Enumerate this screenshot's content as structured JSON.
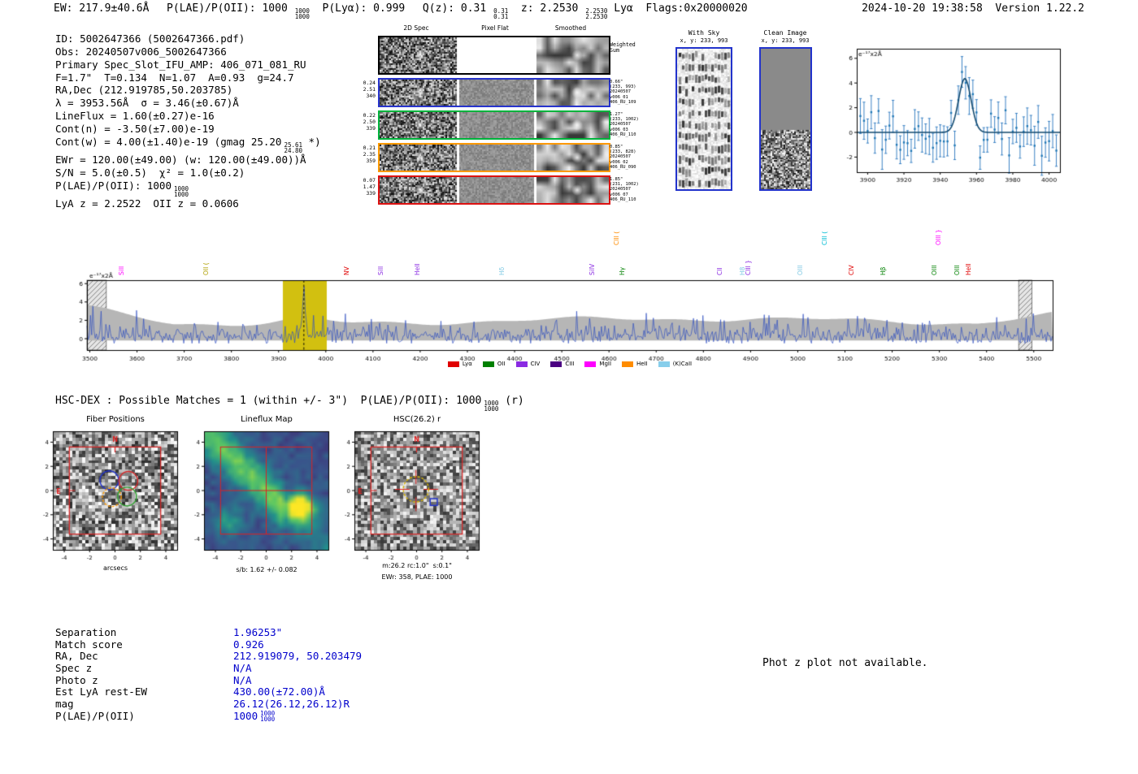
{
  "colors": {
    "value_blue": "#0000cc",
    "box_blue": "#2233cc",
    "highlight_yellow": "#d2c010",
    "envelope_gray": "#b6b6b6",
    "spectrum_blue": "#2f4fc0",
    "marker_red": "#dd2222"
  },
  "topbar": {
    "parts": [
      {
        "text": "EW: 217.9±40.6Å ",
        "frac": null
      },
      {
        "text": " P(LAE)/P(OII): 1000",
        "frac": [
          "1000",
          "1000"
        ]
      },
      {
        "text": "  P(Lyα): 0.999 ",
        "frac": null
      },
      {
        "text": " Q(z): 0.31",
        "frac": [
          "0.31",
          "0.31"
        ]
      },
      {
        "text": "  z: 2.2530",
        "frac": [
          "2.2530",
          "2.2530"
        ]
      },
      {
        "text": " Lyα  Flags:0x20000020",
        "frac": null
      }
    ],
    "datetime": "2024-10-20 19:38:58  Version 1.22.2"
  },
  "info_lines": [
    {
      "text": "ID: 5002647366 (5002647366.pdf)",
      "frac": null,
      "tail": ""
    },
    {
      "text": "Obs: 20240507v006_5002647366",
      "frac": null,
      "tail": ""
    },
    {
      "text": "Primary Spec_Slot_IFU_AMP: 406_071_081_RU",
      "frac": null,
      "tail": ""
    },
    {
      "text": "F=1.7\"  T=0.134  N=1.07  A=0.93  g=24.7",
      "frac": null,
      "tail": ""
    },
    {
      "text": "RA,Dec (212.919785,50.203785)",
      "frac": null,
      "tail": ""
    },
    {
      "text": "λ = 3953.56Å  σ = 3.46(±0.67)Å",
      "frac": null,
      "tail": ""
    },
    {
      "text": "LineFlux = 1.60(±0.27)e-16",
      "frac": null,
      "tail": ""
    },
    {
      "text": "Cont(n) = -3.50(±7.00)e-19",
      "frac": null,
      "tail": ""
    },
    {
      "text": "Cont(w) = 4.00(±1.40)e-19 (gmag 25.20",
      "frac": [
        "25.61",
        "24.80"
      ],
      "tail": " *)"
    },
    {
      "text": "EWr = 120.00(±49.00) (w: 120.00(±49.00))Å",
      "frac": null,
      "tail": ""
    },
    {
      "text": "S/N = 5.0(±0.5)  χ² = 1.0(±0.2)",
      "frac": null,
      "tail": ""
    },
    {
      "text": "P(LAE)/P(OII): 1000",
      "frac": [
        "1000",
        "1000"
      ],
      "tail": ""
    },
    {
      "text": "LyA z = 2.2522  OII z = 0.0606",
      "frac": null,
      "tail": ""
    }
  ],
  "spec2d": {
    "col_headers": [
      "2D Spec",
      "Pixel Flat",
      "Smoothed"
    ],
    "rows": [
      {
        "border": "#000000",
        "weighted": true,
        "left": [],
        "right": [
          "Weighted",
          "Sum"
        ]
      },
      {
        "border": "#2733cc",
        "weighted": false,
        "left": [
          "0.24",
          "2.51",
          "340"
        ],
        "right": [
          "0.66\"",
          "(233, 993)",
          "20240507",
          "v006_01",
          "406_RU_109"
        ]
      },
      {
        "border": "#00b33c",
        "weighted": false,
        "left": [
          "0.22",
          "2.50",
          "339"
        ],
        "right": [
          "1.27\"",
          "(233, 1002)",
          "20240507",
          "v006_03",
          "406_RU_110"
        ]
      },
      {
        "border": "#ff9900",
        "weighted": false,
        "left": [
          "0.21",
          "2.35",
          "359"
        ],
        "right": [
          "0.85\"",
          "(233, 828)",
          "20240507",
          "v006_02",
          "406_RU_090"
        ]
      },
      {
        "border": "#dd1111",
        "weighted": false,
        "left": [
          "0.07",
          "1.47",
          "339"
        ],
        "right": [
          "1.85\"",
          "(231, 1002)",
          "20240507",
          "v006_07",
          "406_RU_110"
        ]
      }
    ]
  },
  "sky_panel": {
    "title": "With Sky",
    "coords": "x, y: 233, 993"
  },
  "clean_panel": {
    "title": "Clean Image",
    "coords": "x, y: 233, 993"
  },
  "hscdex": {
    "prefix": "HSC-DEX : Possible Matches = 1 (within +/- 3\")  P(LAE)/P(OII): 1000",
    "frac": [
      "1000",
      "1000"
    ],
    "suffix": " (r)"
  },
  "panels": {
    "fiber": {
      "title": "Fiber Positions",
      "xlabel": "arcsecs"
    },
    "lineflux": {
      "title": "Lineflux Map",
      "caption": "s/b: 1.62 +/- 0.082"
    },
    "hsc": {
      "title": "HSC(26.2) r",
      "caption1": "m:26.2 rc:1.0\"  s:0.1\"",
      "caption2": "EWr: 358, PLAE: 1000"
    }
  },
  "match_table": {
    "rows": [
      {
        "label": "Separation",
        "value": "1.96253\"",
        "frac": null
      },
      {
        "label": "Match score",
        "value": "0.926",
        "frac": null
      },
      {
        "label": "RA, Dec",
        "value": "212.919079, 50.203479",
        "frac": null
      },
      {
        "label": "Spec z",
        "value": "N/A",
        "frac": null
      },
      {
        "label": "Photo z",
        "value": "N/A",
        "frac": null
      },
      {
        "label": "Est LyA rest-EW",
        "value": "430.00(±72.00)Å",
        "frac": null
      },
      {
        "label": "mag",
        "value": "26.12(26.12,26.12)R",
        "frac": null
      },
      {
        "label": "P(LAE)/P(OII)",
        "value": "1000",
        "frac": [
          "1000",
          "1000"
        ]
      }
    ]
  },
  "photz_note": "Phot z plot not available.",
  "chart_data": [
    {
      "id": "zoom_spectrum",
      "type": "line",
      "title": "",
      "xlabel": "",
      "ylabel": "e-17x2Å",
      "ylabel_display": "e⁻¹⁷x2Å",
      "xlim": [
        3894,
        4006
      ],
      "ylim": [
        -3.3,
        6.8
      ],
      "xticks": [
        3900,
        3920,
        3940,
        3960,
        3980,
        4000
      ],
      "yticks": [
        -2,
        0,
        2,
        4,
        6
      ],
      "emission_line": {
        "center": 3953.56,
        "sigma": 3.46,
        "amplitude": 4.35
      },
      "baseline": 0,
      "noise_sigma": 1.05,
      "errorbar_sigma": 1.25,
      "data_color": "#3b82c4",
      "fit_color": "#10486e"
    },
    {
      "id": "main_spectrum",
      "type": "line",
      "title": "",
      "xlabel": "",
      "ylabel": "e-17x2Å",
      "ylabel_display": "e⁻¹⁷x2Å",
      "xlim": [
        3494,
        5540
      ],
      "ylim": [
        -1.24,
        6.55
      ],
      "xticks": [
        3500,
        3600,
        3700,
        3800,
        3900,
        4000,
        4100,
        4200,
        4300,
        4400,
        4500,
        4600,
        4700,
        4800,
        4900,
        5000,
        5100,
        5200,
        5300,
        5400,
        5500
      ],
      "yticks": [
        0,
        2,
        4,
        6
      ],
      "emission_line": {
        "center": 3953.56,
        "sigma": 3.46,
        "amplitude": 5.0
      },
      "highlight_band": [
        3909,
        4002
      ],
      "hatch_bands": [
        [
          3494,
          3535
        ],
        [
          5468,
          5496
        ]
      ],
      "marker_x": 3953.56,
      "line_labels": [
        {
          "label": "SiII",
          "wave": 3565,
          "color": "#ff00ff",
          "level": 0
        },
        {
          "label": "OII (",
          "wave": 3744,
          "color": "#b0a000",
          "level": 0
        },
        {
          "label": "NV",
          "wave": 4042,
          "color": "#e00000",
          "level": 0
        },
        {
          "label": "SiII",
          "wave": 4114,
          "color": "#8a2be2",
          "level": 0
        },
        {
          "label": "HeII",
          "wave": 4192,
          "color": "#8a2be2",
          "level": 0
        },
        {
          "label": "Hδ",
          "wave": 4371,
          "color": "#7ec8e3",
          "level": 0
        },
        {
          "label": "SiIV",
          "wave": 4562,
          "color": "#8a2be2",
          "level": 0
        },
        {
          "label": "CIII (",
          "wave": 4614,
          "color": "#ff8c00",
          "level": 1
        },
        {
          "label": "Hγ",
          "wave": 4626,
          "color": "#008000",
          "level": 0
        },
        {
          "label": "CII",
          "wave": 4832,
          "color": "#8a2be2",
          "level": 0
        },
        {
          "label": "H8",
          "wave": 4880,
          "color": "#7ec8e3",
          "level": 0
        },
        {
          "label": "CIII }",
          "wave": 4892,
          "color": "#8a2be2",
          "level": 0
        },
        {
          "label": "OIII",
          "wave": 5003,
          "color": "#7ec8e3",
          "level": 0
        },
        {
          "label": "CIII (",
          "wave": 5054,
          "color": "#00bcd4",
          "level": 1
        },
        {
          "label": "CIV",
          "wave": 5111,
          "color": "#e00000",
          "level": 0
        },
        {
          "label": "Hβ",
          "wave": 5178,
          "color": "#008000",
          "level": 0
        },
        {
          "label": "OIII",
          "wave": 5287,
          "color": "#008000",
          "level": 0
        },
        {
          "label": "OIII }",
          "wave": 5296,
          "color": "#ff00ff",
          "level": 1
        },
        {
          "label": "OIII",
          "wave": 5335,
          "color": "#008000",
          "level": 0
        },
        {
          "label": "HeII",
          "wave": 5359,
          "color": "#e00000",
          "level": 0
        }
      ],
      "legend": [
        {
          "label": "Lyα",
          "color": "#e00000"
        },
        {
          "label": "OII",
          "color": "#008000"
        },
        {
          "label": "CIV",
          "color": "#8a2be2"
        },
        {
          "label": "CIII",
          "color": "#4b0082"
        },
        {
          "label": "MgII",
          "color": "#ff00ff"
        },
        {
          "label": "HeII",
          "color": "#ff8c00"
        },
        {
          "label": "(K)CaII",
          "color": "#87ceeb"
        }
      ],
      "legend_position": "bottom-center",
      "grid": false
    },
    {
      "id": "fiber_positions",
      "type": "image",
      "title": "Fiber Positions",
      "xlabel": "arcsecs",
      "xlim": [
        -4.9,
        4.9
      ],
      "ylim": [
        -4.9,
        4.9
      ],
      "xticks": [
        -4,
        -2,
        0,
        2,
        4
      ],
      "yticks": [
        4,
        2,
        0,
        -2,
        -4
      ],
      "compass": {
        "n": "N",
        "e": "E",
        "color": "#dd2222"
      },
      "box": {
        "half": 3.6,
        "color": "#dd2222"
      },
      "fibers": [
        {
          "x": -0.45,
          "y": 0.85,
          "r": 0.74,
          "color": "#2233cc",
          "dash": false
        },
        {
          "x": 1.05,
          "y": 0.8,
          "r": 0.74,
          "color": "#d62728",
          "dash": false
        },
        {
          "x": -0.25,
          "y": -0.55,
          "r": 0.74,
          "color": "#ff9900",
          "dash": true
        },
        {
          "x": 0.95,
          "y": -0.5,
          "r": 0.74,
          "color": "#2ca02c",
          "dash": false
        }
      ]
    },
    {
      "id": "lineflux_map",
      "type": "heatmap",
      "title": "Lineflux Map",
      "caption": "s/b: 1.62 +/- 0.082",
      "xlim": [
        -4.9,
        4.9
      ],
      "ylim": [
        -4.9,
        4.9
      ],
      "xticks": [
        -4,
        -2,
        0,
        2,
        4
      ],
      "yticks": [
        4,
        2,
        0,
        -2,
        -4
      ],
      "colormap": "viridis",
      "box": {
        "half": 3.6,
        "color": "#dd2222"
      },
      "features": {
        "diagonal_ridge": true,
        "bright_blob": {
          "x": 2.7,
          "y": -1.4
        }
      }
    },
    {
      "id": "hsc_cutout",
      "type": "image",
      "title": "HSC(26.2) r",
      "xlim": [
        -4.9,
        4.9
      ],
      "ylim": [
        -4.9,
        4.9
      ],
      "xticks": [
        -4,
        -2,
        0,
        2,
        4
      ],
      "yticks": [
        4,
        2,
        0,
        -2,
        -4
      ],
      "compass": {
        "n": "N",
        "e": "E",
        "color": "#dd2222"
      },
      "box": {
        "half": 3.6,
        "color": "#dd2222"
      },
      "aperture": {
        "x": -0.05,
        "y": 0.1,
        "r": 1.0,
        "color": "#d4b106",
        "dash": true
      },
      "crosshair": {
        "color": "#dd2222"
      },
      "catalog_box": {
        "x": 1.35,
        "y": -0.95,
        "half": 0.28,
        "color": "#2233cc"
      },
      "captions": [
        "m:26.2 rc:1.0\"  s:0.1\"",
        "EWr: 358, PLAE: 1000"
      ]
    }
  ]
}
